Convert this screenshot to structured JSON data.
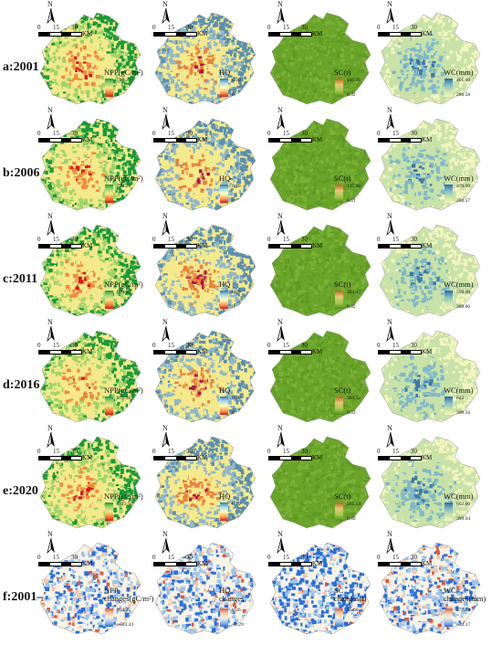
{
  "rows": [
    {
      "label": "a:2001",
      "npp": {
        "max": "788.17",
        "min": "0"
      },
      "hq": {
        "max": "0.30",
        "min": "0"
      },
      "sc": {
        "max": "149.66",
        "min": "0.32"
      },
      "wc": {
        "max": "401.00",
        "min": "286.58"
      }
    },
    {
      "label": "b:2006",
      "npp": {
        "max": "729.21",
        "min": "0"
      },
      "hq": {
        "max": "0.29",
        "min": "0"
      },
      "sc": {
        "max": "137.86",
        "min": "0.51"
      },
      "wc": {
        "max": "479.00",
        "min": "286.57"
      }
    },
    {
      "label": "c:2011",
      "npp": {
        "max": "920.09",
        "min": "0"
      },
      "hq": {
        "max": "0.29",
        "min": "0"
      },
      "sc": {
        "max": "203.47",
        "min": "0.42"
      },
      "wc": {
        "max": "590.00",
        "min": "368.06"
      }
    },
    {
      "label": "d:2016",
      "npp": {
        "max": "971.58",
        "min": "0"
      },
      "hq": {
        "max": "0.29",
        "min": "0"
      },
      "sc": {
        "max": "384.52",
        "min": "0.52"
      },
      "wc": {
        "max": "642",
        "min": "398.56"
      }
    },
    {
      "label": "e:2020",
      "npp": {
        "max": "1113.93",
        "min": "0"
      },
      "hq": {
        "max": "0.29",
        "min": "0"
      },
      "sc": {
        "max": "205.14",
        "min": "0.48"
      },
      "wc": {
        "max": "602.00",
        "min": "399.94"
      }
    },
    {
      "label": "f:2001–2020",
      "npp": {
        "max": "954.25",
        "min": "−583.43"
      },
      "hq": {
        "max": "0.26",
        "min": "−0.29"
      },
      "sc": {
        "max": "73.60",
        "min": "0"
      },
      "wc": {
        "max": "277.84",
        "min": "−24.17"
      }
    }
  ],
  "legend_titles": {
    "npp": "NPP(gC/m²)",
    "hq": "HQ",
    "sc": "SC(t)",
    "wc": "WC(mm)"
  },
  "change_titles": {
    "npp": [
      "NPP",
      "changes(gC/m²)"
    ],
    "hq": [
      "HQ",
      "changes"
    ],
    "sc": [
      "SC",
      "changes(t)"
    ],
    "wc": [
      "WC",
      "changes(mm)"
    ]
  },
  "north": "N",
  "scale": {
    "ticks": [
      "0",
      "15",
      "30"
    ],
    "unit": "KM"
  },
  "colors": {
    "npp": [
      "#d7191c",
      "#f08b3c",
      "#f4e98c",
      "#9fd46a",
      "#1a9a3a"
    ],
    "hq": [
      "#b3124a",
      "#e8843d",
      "#f4e98c",
      "#8fb7c9",
      "#5b8fb0"
    ],
    "sc": [
      "#5f9a23",
      "#6aa52a",
      "#7cb137"
    ],
    "wc": [
      "#3f78a8",
      "#7fb8c9",
      "#c8e2a8",
      "#f4f5c0"
    ],
    "chg": [
      "#2a6fdc",
      "#9ec3ea",
      "#f7f3e6",
      "#f5c7a8",
      "#e0583a"
    ]
  }
}
